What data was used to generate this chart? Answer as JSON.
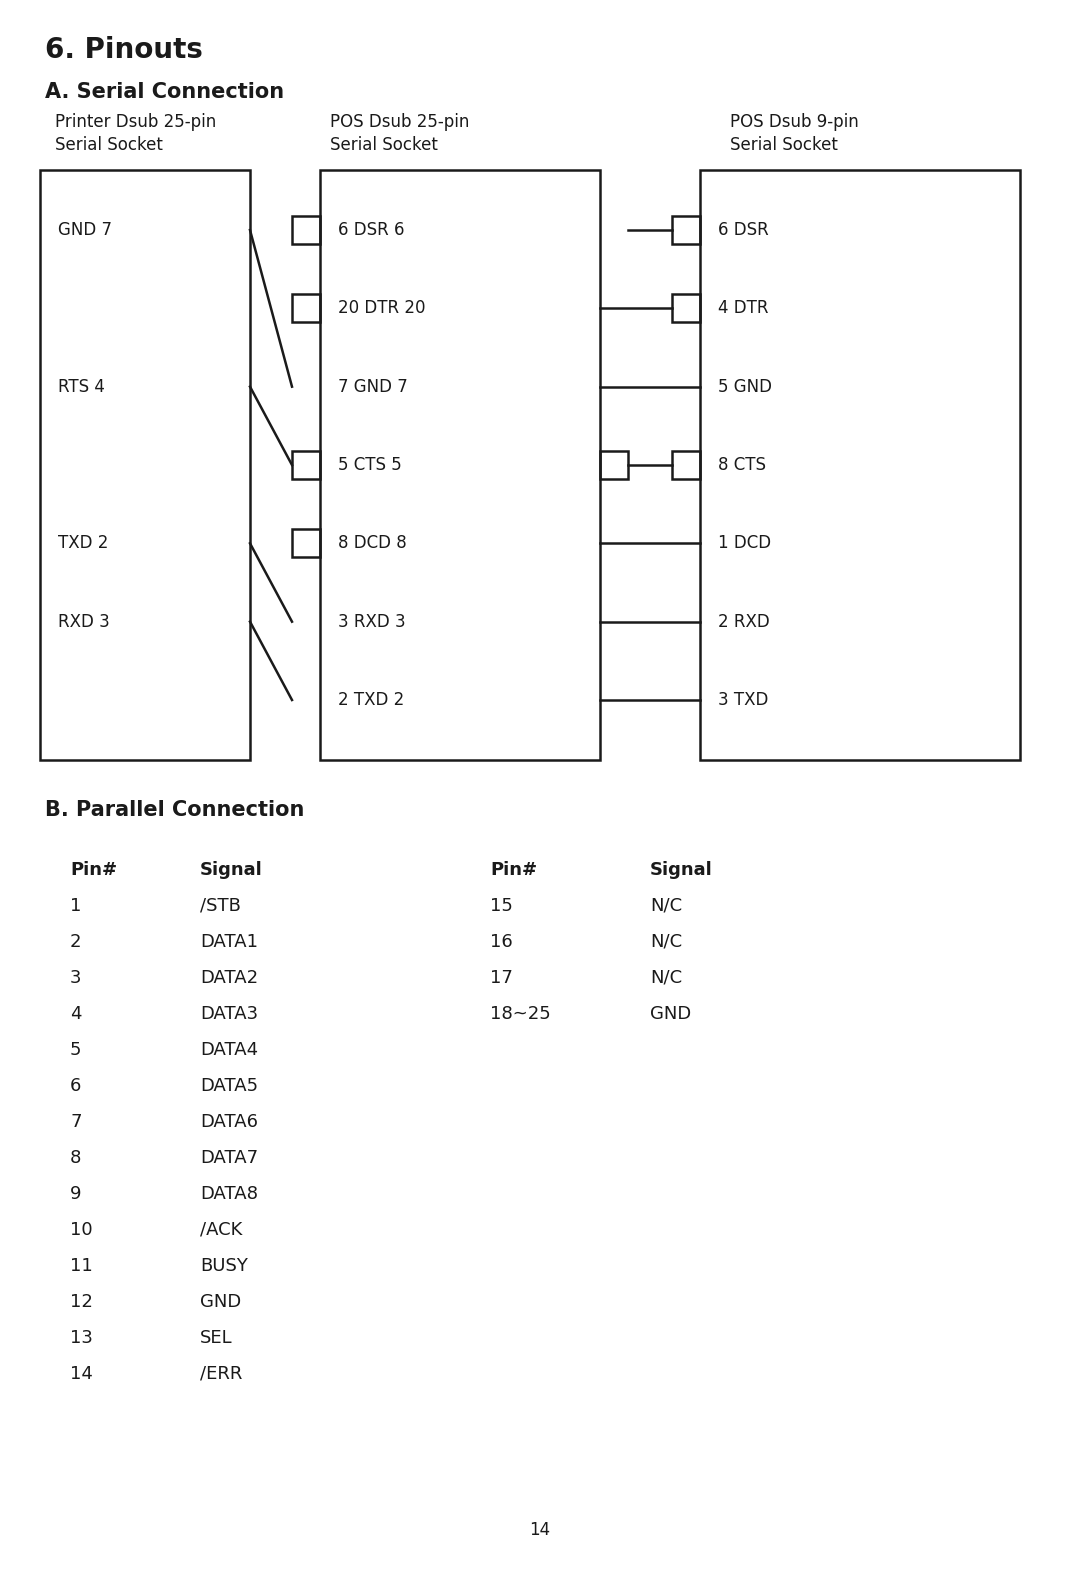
{
  "title": "6. Pinouts",
  "section_a": "A. Serial Connection",
  "section_b": "B. Parallel Connection",
  "bg_color": "#ffffff",
  "text_color": "#1a1a1a",
  "col1_header1": "Printer Dsub 25-pin",
  "col1_header2": "Serial Socket",
  "col2_header1": "POS Dsub 25-pin",
  "col2_header2": "Serial Socket",
  "col3_header1": "POS Dsub 9-pin",
  "col3_header2": "Serial Socket",
  "col1_pins": [
    "GND 7",
    "RTS 4",
    "TXD 2",
    "RXD 3"
  ],
  "col2_pins": [
    "6 DSR 6",
    "20 DTR 20",
    "7 GND 7",
    "5 CTS 5",
    "8 DCD 8",
    "3 RXD 3",
    "2 TXD 2"
  ],
  "col3_pins": [
    "6 DSR",
    "4 DTR",
    "5 GND",
    "8 CTS",
    "1 DCD",
    "2 RXD",
    "3 TXD"
  ],
  "parallel_col1_pins": [
    "1",
    "2",
    "3",
    "4",
    "5",
    "6",
    "7",
    "8",
    "9",
    "10",
    "11",
    "12",
    "13",
    "14"
  ],
  "parallel_col1_signals": [
    "/STB",
    "DATA1",
    "DATA2",
    "DATA3",
    "DATA4",
    "DATA5",
    "DATA6",
    "DATA7",
    "DATA8",
    "/ACK",
    "BUSY",
    "GND",
    "SEL",
    "/ERR"
  ],
  "parallel_col2_pins": [
    "15",
    "16",
    "17",
    "18~25"
  ],
  "parallel_col2_signals": [
    "N/C",
    "N/C",
    "N/C",
    "GND"
  ],
  "page_number": "14"
}
